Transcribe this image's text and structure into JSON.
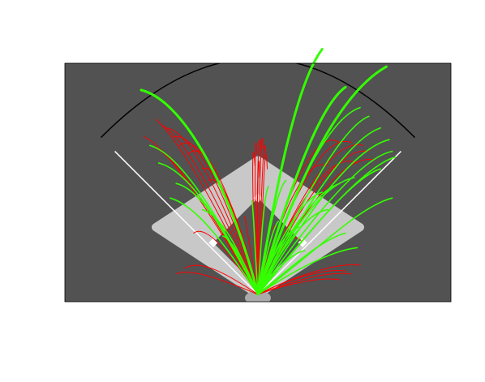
{
  "chart_data": {
    "type": "line",
    "title": "",
    "xlabel": "",
    "ylabel": "",
    "grid": false,
    "legend": "none",
    "xlim": [
      -330,
      330
    ],
    "ylim": [
      -15,
      395
    ],
    "colors": {
      "background": "#525252",
      "infield": "#c8c8c8",
      "infield_dirt": "#555555",
      "foul_line": "#ffffff",
      "fence": "#000000",
      "plate_area": "#aaaaaa",
      "hit_a": "#ff0000",
      "hit_b": "#33ff00"
    },
    "field": {
      "foul_line_length": 330,
      "fence_radius": 380,
      "infield_corners": [
        [
          0,
          0
        ],
        [
          175,
          115
        ],
        [
          0,
          230
        ],
        [
          -175,
          115
        ]
      ],
      "base_path": 90
    },
    "series": [
      {
        "color_key": "hit_a",
        "trajectories": [
          {
            "x": [
              0,
              -60,
              -130,
              -175
            ],
            "y": [
              0,
              130,
              260,
              300
            ]
          },
          {
            "x": [
              0,
              -55,
              -120,
              -165
            ],
            "y": [
              0,
              135,
              265,
              290
            ]
          },
          {
            "x": [
              0,
              -50,
              -110,
              -155
            ],
            "y": [
              0,
              140,
              275,
              285
            ]
          },
          {
            "x": [
              0,
              -45,
              -100,
              -145
            ],
            "y": [
              0,
              145,
              280,
              270
            ]
          },
          {
            "x": [
              0,
              -40,
              -95,
              -135
            ],
            "y": [
              0,
              150,
              285,
              255
            ]
          },
          {
            "x": [
              0,
              -38,
              -85,
              -120
            ],
            "y": [
              0,
              150,
              275,
              240
            ]
          },
          {
            "x": [
              0,
              -70,
              -150,
              -195
            ],
            "y": [
              0,
              120,
              250,
              270
            ]
          },
          {
            "x": [
              0,
              -65,
              -140,
              -185
            ],
            "y": [
              0,
              115,
              245,
              255
            ]
          },
          {
            "x": [
              0,
              -30,
              -70,
              -95
            ],
            "y": [
              0,
              120,
              230,
              215
            ]
          },
          {
            "x": [
              0,
              -25,
              -60,
              -85
            ],
            "y": [
              0,
              110,
              210,
              195
            ]
          },
          {
            "x": [
              0,
              -12,
              -10,
              -5
            ],
            "y": [
              0,
              160,
              300,
              220
            ]
          },
          {
            "x": [
              0,
              -8,
              -4,
              -2
            ],
            "y": [
              0,
              165,
              315,
              240
            ]
          },
          {
            "x": [
              0,
              -4,
              2,
              5
            ],
            "y": [
              0,
              165,
              320,
              245
            ]
          },
          {
            "x": [
              0,
              2,
              6,
              9
            ],
            "y": [
              0,
              170,
              320,
              250
            ]
          },
          {
            "x": [
              0,
              6,
              10,
              14
            ],
            "y": [
              0,
              165,
              310,
              235
            ]
          },
          {
            "x": [
              0,
              10,
              12,
              16
            ],
            "y": [
              0,
              160,
              300,
              215
            ]
          },
          {
            "x": [
              0,
              -2,
              1,
              3
            ],
            "y": [
              0,
              150,
              290,
              200
            ]
          },
          {
            "x": [
              0,
              40,
              95,
              140
            ],
            "y": [
              0,
              150,
              290,
              260
            ]
          },
          {
            "x": [
              0,
              48,
              110,
              160
            ],
            "y": [
              0,
              145,
              280,
              260
            ]
          },
          {
            "x": [
              0,
              55,
              125,
              180
            ],
            "y": [
              0,
              140,
              270,
              255
            ]
          },
          {
            "x": [
              0,
              60,
              135,
              190
            ],
            "y": [
              0,
              135,
              255,
              245
            ]
          },
          {
            "x": [
              0,
              65,
              145,
              200
            ],
            "y": [
              0,
              125,
              245,
              230
            ]
          },
          {
            "x": [
              0,
              50,
              120,
              170
            ],
            "y": [
              0,
              130,
              250,
              225
            ]
          },
          {
            "x": [
              0,
              35,
              80,
              120
            ],
            "y": [
              0,
              125,
              240,
              220
            ]
          },
          {
            "x": [
              0,
              60,
              120,
              150
            ],
            "y": [
              0,
              30,
              45,
              40
            ]
          },
          {
            "x": [
              0,
              70,
              140,
              175
            ],
            "y": [
              0,
              35,
              55,
              50
            ]
          },
          {
            "x": [
              0,
              55,
              110,
              140
            ],
            "y": [
              0,
              20,
              30,
              25
            ]
          },
          {
            "x": [
              0,
              65,
              120,
              160
            ],
            "y": [
              0,
              25,
              40,
              35
            ]
          },
          {
            "x": [
              0,
              -60,
              -100,
              -125
            ],
            "y": [
              0,
              40,
              60,
              45
            ]
          },
          {
            "x": [
              0,
              -70,
              -120,
              -140
            ],
            "y": [
              0,
              30,
              45,
              35
            ]
          },
          {
            "x": [
              0,
              20,
              30,
              28
            ],
            "y": [
              0,
              80,
              130,
              115
            ]
          },
          {
            "x": [
              0,
              -15,
              -25,
              -22
            ],
            "y": [
              0,
              90,
              150,
              130
            ]
          },
          {
            "x": [
              0,
              30,
              60,
              75
            ],
            "y": [
              0,
              70,
              115,
              90
            ]
          },
          {
            "x": [
              0,
              -55,
              -90,
              -110
            ],
            "y": [
              0,
              80,
              120,
              105
            ]
          }
        ]
      },
      {
        "color_key": "hit_b",
        "trajectories": [
          {
            "x": [
              0,
              -40,
              -120,
              -200
            ],
            "y": [
              0,
              160,
              330,
              350
            ]
          },
          {
            "x": [
              0,
              30,
              65,
              110
            ],
            "y": [
              0,
              180,
              360,
              420
            ]
          },
          {
            "x": [
              0,
              60,
              130,
              220
            ],
            "y": [
              0,
              170,
              340,
              390
            ]
          },
          {
            "x": [
              0,
              45,
              100,
              150
            ],
            "y": [
              0,
              150,
              320,
              355
            ]
          },
          {
            "x": [
              0,
              50,
              115,
              175
            ],
            "y": [
              0,
              150,
              300,
              320
            ]
          },
          {
            "x": [
              0,
              65,
              140,
              190
            ],
            "y": [
              0,
              140,
              285,
              305
            ]
          },
          {
            "x": [
              0,
              70,
              150,
              210
            ],
            "y": [
              0,
              130,
              265,
              285
            ]
          },
          {
            "x": [
              0,
              75,
              160,
              225
            ],
            "y": [
              0,
              125,
              250,
              265
            ]
          },
          {
            "x": [
              0,
              80,
              175,
              230
            ],
            "y": [
              0,
              115,
              235,
              245
            ]
          },
          {
            "x": [
              0,
              85,
              180,
              235
            ],
            "y": [
              0,
              105,
              220,
              235
            ]
          },
          {
            "x": [
              0,
              80,
              160,
              210
            ],
            "y": [
              0,
              95,
              200,
              215
            ]
          },
          {
            "x": [
              0,
              85,
              170,
              230
            ],
            "y": [
              0,
              60,
              150,
              165
            ]
          },
          {
            "x": [
              0,
              50,
              110,
              165
            ],
            "y": [
              0,
              100,
              190,
              200
            ]
          },
          {
            "x": [
              0,
              40,
              95,
              140
            ],
            "y": [
              0,
              90,
              175,
              190
            ]
          },
          {
            "x": [
              0,
              30,
              75,
              110
            ],
            "y": [
              0,
              85,
              165,
              175
            ]
          },
          {
            "x": [
              0,
              35,
              80,
              120
            ],
            "y": [
              0,
              70,
              140,
              145
            ]
          },
          {
            "x": [
              0,
              20,
              45,
              70
            ],
            "y": [
              0,
              55,
              110,
              115
            ]
          },
          {
            "x": [
              0,
              -50,
              -100,
              -150
            ],
            "y": [
              0,
              75,
              150,
              165
            ]
          },
          {
            "x": [
              0,
              -55,
              -110,
              -170
            ],
            "y": [
              0,
              100,
              210,
              225
            ]
          },
          {
            "x": [
              0,
              -60,
              -130,
              -185
            ],
            "y": [
              0,
              120,
              240,
              255
            ]
          },
          {
            "x": [
              0,
              -45,
              -95,
              -140
            ],
            "y": [
              0,
              90,
              180,
              190
            ]
          },
          {
            "x": [
              0,
              -30,
              -60,
              -95
            ],
            "y": [
              0,
              70,
              135,
              145
            ]
          },
          {
            "x": [
              0,
              5,
              10,
              18
            ],
            "y": [
              0,
              85,
              170,
              185
            ]
          },
          {
            "x": [
              0,
              -5,
              -8,
              -10
            ],
            "y": [
              0,
              75,
              150,
              160
            ]
          },
          {
            "x": [
              0,
              12,
              25,
              35
            ],
            "y": [
              0,
              55,
              115,
              125
            ]
          },
          {
            "x": [
              0,
              15,
              35,
              48
            ],
            "y": [
              0,
              95,
              185,
              195
            ]
          },
          {
            "x": [
              0,
              55,
              110,
              150
            ],
            "y": [
              0,
              45,
              95,
              105
            ]
          },
          {
            "x": [
              0,
              60,
              125,
              170
            ],
            "y": [
              0,
              40,
              75,
              80
            ]
          },
          {
            "x": [
              0,
              -20,
              -45,
              -60
            ],
            "y": [
              0,
              50,
              95,
              100
            ]
          },
          {
            "x": [
              0,
              25,
              55,
              80
            ],
            "y": [
              0,
              35,
              70,
              75
            ]
          }
        ]
      }
    ]
  }
}
